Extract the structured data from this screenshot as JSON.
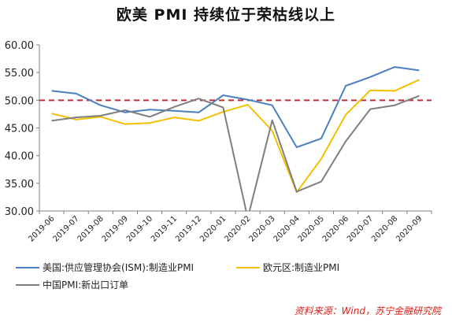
{
  "title": "欧美 PMI 持续位于荣枯线以上",
  "source_note": "资料来源：Wind，苏宁金融研究院",
  "colors": {
    "us": "#4a7fc1",
    "eu": "#f5c000",
    "cn": "#7f7f7f",
    "threshold": "#b0343a",
    "axis": "#808080"
  },
  "chart_data": {
    "type": "line",
    "title": "欧美 PMI 持续位于荣枯线以上",
    "xlabel": "",
    "ylabel": "",
    "categories": [
      "2019-06",
      "2019-07",
      "2019-08",
      "2019-09",
      "2019-10",
      "2019-11",
      "2019-12",
      "2020-01",
      "2020-02",
      "2020-03",
      "2020-04",
      "2020-05",
      "2020-06",
      "2020-07",
      "2020-08",
      "2020-09"
    ],
    "ylim": [
      30,
      60
    ],
    "yticks": [
      "30.00",
      "35.00",
      "40.00",
      "45.00",
      "50.00",
      "55.00",
      "60.00"
    ],
    "grid": false,
    "threshold": 50,
    "legend_position": "bottom",
    "series": [
      {
        "name": "美国:供应管理协会(ISM):制造业PMI",
        "key": "us",
        "values": [
          51.7,
          51.2,
          49.1,
          47.8,
          48.3,
          48.1,
          47.8,
          50.9,
          50.1,
          49.1,
          41.5,
          43.1,
          52.6,
          54.2,
          56.0,
          55.4
        ]
      },
      {
        "name": "欧元区:制造业PMI",
        "key": "eu",
        "values": [
          47.6,
          46.5,
          47.0,
          45.7,
          45.9,
          46.9,
          46.3,
          47.9,
          49.2,
          44.5,
          33.4,
          39.4,
          47.4,
          51.8,
          51.7,
          53.7
        ]
      },
      {
        "name": "中国PMI:新出口订单",
        "key": "cn",
        "values": [
          46.3,
          46.9,
          47.2,
          48.2,
          47.0,
          48.8,
          50.3,
          48.7,
          28.7,
          46.4,
          33.5,
          35.3,
          42.6,
          48.4,
          49.1,
          50.8
        ]
      }
    ]
  }
}
